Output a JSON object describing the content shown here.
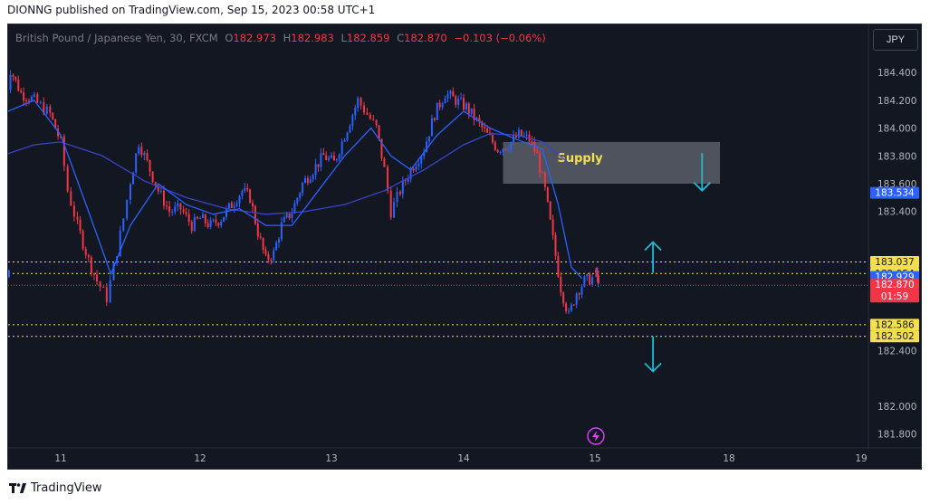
{
  "header": {
    "publisher_line": "DIONNG published on TradingView.com, Sep 15, 2023 00:58 UTC+1"
  },
  "legend": {
    "symbol": "British Pound / Japanese Yen, 30, FXCM",
    "o_label": "O",
    "o": "182.973",
    "h_label": "H",
    "h": "182.983",
    "l_label": "L",
    "l": "182.859",
    "c_label": "C",
    "c": "182.870",
    "change": "−0.103 (−0.06%)"
  },
  "currency_button": "JPY",
  "footer": {
    "brand": "TradingView"
  },
  "colors": {
    "up": "#2962ff",
    "down": "#f23645",
    "ma_fast": "#2962ff",
    "ma_slow": "#3a44c8",
    "yellow": "#f4e04d",
    "arrow": "#22b8cf",
    "bg": "#131722"
  },
  "icons": {
    "flash": "lightning-icon"
  },
  "chart_data": {
    "type": "candlestick",
    "y_ticks": [
      "184.400",
      "184.200",
      "184.000",
      "183.800",
      "183.600",
      "183.400",
      "182.400",
      "182.000",
      "181.800"
    ],
    "x_ticks": [
      "11",
      "12",
      "13",
      "14",
      "15",
      "18",
      "19"
    ],
    "ylim": [
      181.7,
      184.55
    ],
    "zone": {
      "label": "Supply",
      "from_day": 14.3,
      "to_day": 17.8,
      "low": 183.6,
      "high": 183.9
    },
    "h_lines": [
      {
        "value": 183.037,
        "style": "yellow"
      },
      {
        "value": 182.954,
        "style": "yellow"
      },
      {
        "value": 182.87,
        "style": "red"
      },
      {
        "value": 182.586,
        "style": "yellow"
      },
      {
        "value": 182.502,
        "style": "yellow"
      }
    ],
    "price_labels": [
      {
        "value": 183.534,
        "text": "183.534",
        "bg": "#2962ff",
        "fg": "#ffffff"
      },
      {
        "value": 183.037,
        "text": "183.037",
        "bg": "#f4e04d",
        "fg": "#131722"
      },
      {
        "value": 182.954,
        "text": "182.954",
        "bg": "#f4e04d",
        "fg": "#131722"
      },
      {
        "value": 182.929,
        "text": "182.929",
        "bg": "#2962ff",
        "fg": "#ffffff"
      },
      {
        "value": 182.87,
        "text": "182.870",
        "bg": "#f23645",
        "fg": "#ffffff",
        "sub": "01:59"
      },
      {
        "value": 182.586,
        "text": "182.586",
        "bg": "#f4e04d",
        "fg": "#131722"
      },
      {
        "value": 182.502,
        "text": "182.502",
        "bg": "#f4e04d",
        "fg": "#131722"
      }
    ],
    "arrows": [
      {
        "direction": "down",
        "day": 17.4,
        "from": 183.82,
        "to": 183.55
      },
      {
        "direction": "up",
        "day": 16.3,
        "from": 182.96,
        "to": 183.18
      },
      {
        "direction": "down",
        "day": 16.3,
        "from": 182.5,
        "to": 182.25
      }
    ],
    "price_path": [
      [
        10.55,
        184.05
      ],
      [
        10.62,
        184.42
      ],
      [
        10.7,
        184.25
      ],
      [
        10.8,
        184.2
      ],
      [
        10.92,
        184.1
      ],
      [
        11.0,
        183.9
      ],
      [
        11.05,
        183.55
      ],
      [
        11.12,
        183.3
      ],
      [
        11.2,
        183.05
      ],
      [
        11.26,
        182.9
      ],
      [
        11.33,
        182.78
      ],
      [
        11.38,
        183.0
      ],
      [
        11.45,
        183.35
      ],
      [
        11.5,
        183.62
      ],
      [
        11.56,
        183.9
      ],
      [
        11.62,
        183.75
      ],
      [
        11.7,
        183.55
      ],
      [
        11.78,
        183.4
      ],
      [
        11.86,
        183.42
      ],
      [
        11.94,
        183.3
      ],
      [
        12.0,
        183.35
      ],
      [
        12.08,
        183.3
      ],
      [
        12.16,
        183.35
      ],
      [
        12.24,
        183.45
      ],
      [
        12.32,
        183.55
      ],
      [
        12.38,
        183.5
      ],
      [
        12.44,
        183.25
      ],
      [
        12.5,
        183.05
      ],
      [
        12.56,
        183.1
      ],
      [
        12.62,
        183.3
      ],
      [
        12.7,
        183.4
      ],
      [
        12.78,
        183.6
      ],
      [
        12.86,
        183.7
      ],
      [
        12.94,
        183.8
      ],
      [
        13.02,
        183.75
      ],
      [
        13.08,
        183.9
      ],
      [
        13.14,
        184.05
      ],
      [
        13.2,
        184.2
      ],
      [
        13.27,
        184.1
      ],
      [
        13.34,
        184.0
      ],
      [
        13.4,
        183.7
      ],
      [
        13.45,
        183.4
      ],
      [
        13.52,
        183.55
      ],
      [
        13.6,
        183.7
      ],
      [
        13.7,
        183.85
      ],
      [
        13.78,
        184.1
      ],
      [
        13.86,
        184.25
      ],
      [
        13.94,
        184.2
      ],
      [
        14.02,
        184.15
      ],
      [
        14.1,
        184.05
      ],
      [
        14.18,
        183.95
      ],
      [
        14.26,
        183.85
      ],
      [
        14.34,
        183.88
      ],
      [
        14.42,
        183.95
      ],
      [
        14.5,
        183.92
      ],
      [
        14.56,
        183.8
      ],
      [
        14.62,
        183.55
      ],
      [
        14.68,
        183.2
      ],
      [
        14.74,
        182.85
      ],
      [
        14.8,
        182.65
      ],
      [
        14.86,
        182.82
      ],
      [
        14.92,
        182.9
      ],
      [
        14.98,
        182.92
      ],
      [
        15.02,
        182.96
      ],
      [
        15.06,
        182.93
      ],
      [
        15.08,
        182.87
      ]
    ],
    "ma_fast": [
      [
        10.55,
        184.1
      ],
      [
        10.8,
        184.2
      ],
      [
        11.0,
        183.95
      ],
      [
        11.2,
        183.4
      ],
      [
        11.36,
        182.95
      ],
      [
        11.5,
        183.3
      ],
      [
        11.7,
        183.6
      ],
      [
        11.9,
        183.45
      ],
      [
        12.1,
        183.38
      ],
      [
        12.3,
        183.42
      ],
      [
        12.5,
        183.3
      ],
      [
        12.7,
        183.3
      ],
      [
        12.9,
        183.55
      ],
      [
        13.1,
        183.8
      ],
      [
        13.3,
        184.0
      ],
      [
        13.45,
        183.8
      ],
      [
        13.6,
        183.7
      ],
      [
        13.8,
        183.95
      ],
      [
        14.0,
        184.12
      ],
      [
        14.2,
        184.0
      ],
      [
        14.4,
        183.92
      ],
      [
        14.6,
        183.85
      ],
      [
        14.72,
        183.45
      ],
      [
        14.82,
        183.0
      ],
      [
        14.9,
        182.92
      ],
      [
        15.0,
        182.92
      ],
      [
        15.08,
        182.93
      ]
    ],
    "ma_slow": [
      [
        10.55,
        183.8
      ],
      [
        10.8,
        183.88
      ],
      [
        11.0,
        183.9
      ],
      [
        11.3,
        183.8
      ],
      [
        11.6,
        183.62
      ],
      [
        11.9,
        183.5
      ],
      [
        12.2,
        183.42
      ],
      [
        12.5,
        183.38
      ],
      [
        12.8,
        183.4
      ],
      [
        13.1,
        183.45
      ],
      [
        13.4,
        183.55
      ],
      [
        13.7,
        183.7
      ],
      [
        14.0,
        183.88
      ],
      [
        14.2,
        183.96
      ],
      [
        14.4,
        183.95
      ],
      [
        14.6,
        183.9
      ],
      [
        14.8,
        183.75
      ],
      [
        15.0,
        183.55
      ]
    ]
  }
}
